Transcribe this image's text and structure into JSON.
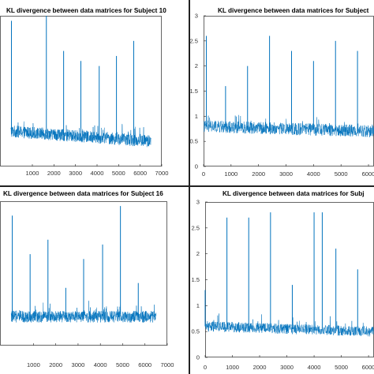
{
  "chart_data": [
    {
      "type": "line",
      "title": "KL divergence between data matrices for Subject 10",
      "x_ticks": [
        1000,
        2000,
        3000,
        4000,
        5000,
        6000,
        7000
      ],
      "y_ticks": [],
      "xlim": [
        -500,
        7000
      ],
      "ylim": [
        0,
        3
      ],
      "series_color": "#0072BD",
      "noise": {
        "n_points": 6500,
        "mean_start": 0.7,
        "mean_end": 0.5,
        "spread": 0.12
      },
      "spikes": [
        {
          "x": 30,
          "y": 2.9
        },
        {
          "x": 1650,
          "y": 3.0
        },
        {
          "x": 2450,
          "y": 2.3
        },
        {
          "x": 3250,
          "y": 2.1
        },
        {
          "x": 4100,
          "y": 2.0
        },
        {
          "x": 4900,
          "y": 2.2
        },
        {
          "x": 5700,
          "y": 2.5
        }
      ]
    },
    {
      "type": "line",
      "title": "KL divergence between data matrices for Subject",
      "x_ticks": [
        0,
        1000,
        2000,
        3000,
        4000,
        5000,
        6000
      ],
      "y_ticks": [
        0,
        0.5,
        1,
        1.5,
        2,
        2.5,
        3
      ],
      "xlim": [
        0,
        6200
      ],
      "ylim": [
        0,
        3
      ],
      "series_color": "#0072BD",
      "noise": {
        "n_points": 6200,
        "mean_start": 0.8,
        "mean_end": 0.7,
        "spread": 0.12
      },
      "spikes": [
        {
          "x": 100,
          "y": 2.6
        },
        {
          "x": 800,
          "y": 1.6
        },
        {
          "x": 1600,
          "y": 2.0
        },
        {
          "x": 2400,
          "y": 2.6
        },
        {
          "x": 3200,
          "y": 2.3
        },
        {
          "x": 4000,
          "y": 2.1
        },
        {
          "x": 4800,
          "y": 2.5
        },
        {
          "x": 5600,
          "y": 2.3
        }
      ]
    },
    {
      "type": "line",
      "title": "KL divergence between data matrices for Subject 16",
      "x_ticks": [
        1000,
        2000,
        3000,
        4000,
        5000,
        6000,
        7000
      ],
      "y_ticks": [],
      "xlim": [
        -500,
        7000
      ],
      "ylim": [
        0,
        3
      ],
      "series_color": "#0072BD",
      "noise": {
        "n_points": 6500,
        "mean_start": 0.6,
        "mean_end": 0.6,
        "spread": 0.12
      },
      "spikes": [
        {
          "x": 50,
          "y": 2.7
        },
        {
          "x": 850,
          "y": 1.9
        },
        {
          "x": 1650,
          "y": 2.2
        },
        {
          "x": 2450,
          "y": 1.2
        },
        {
          "x": 3250,
          "y": 1.8
        },
        {
          "x": 4100,
          "y": 2.1
        },
        {
          "x": 4900,
          "y": 2.9
        },
        {
          "x": 5700,
          "y": 1.3
        }
      ]
    },
    {
      "type": "line",
      "title": "KL divergence between data matrices for Subj",
      "x_ticks": [
        0,
        1000,
        2000,
        3000,
        4000,
        5000,
        6000
      ],
      "y_ticks": [
        0,
        0.5,
        1,
        1.5,
        2,
        2.5,
        3
      ],
      "xlim": [
        0,
        6200
      ],
      "ylim": [
        0,
        3
      ],
      "series_color": "#0072BD",
      "noise": {
        "n_points": 6200,
        "mean_start": 0.6,
        "mean_end": 0.5,
        "spread": 0.1
      },
      "spikes": [
        {
          "x": 0,
          "y": 1.3
        },
        {
          "x": 800,
          "y": 2.7
        },
        {
          "x": 1600,
          "y": 2.7
        },
        {
          "x": 2400,
          "y": 2.8
        },
        {
          "x": 3200,
          "y": 1.4
        },
        {
          "x": 4000,
          "y": 2.8
        },
        {
          "x": 4300,
          "y": 2.8
        },
        {
          "x": 4800,
          "y": 2.1
        },
        {
          "x": 5600,
          "y": 1.7
        }
      ]
    }
  ]
}
